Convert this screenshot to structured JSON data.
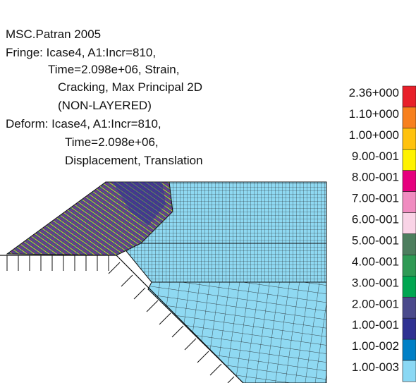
{
  "header": {
    "lines": [
      "MSC.Patran 2005",
      "Fringe: Icase4, A1:Incr=810,",
      "Time=2.098e+06, Strain,",
      "Cracking, Max Principal 2D",
      "(NON-LAYERED)",
      "Deform: Icase4, A1:Incr=810,",
      "Time=2.098e+06,",
      "Displacement, Translation"
    ]
  },
  "legend": {
    "entries": [
      {
        "label": "2.36+000",
        "color": "#e8202a"
      },
      {
        "label": "1.10+000",
        "color": "#f7801e"
      },
      {
        "label": "1.00+000",
        "color": "#ffc20e"
      },
      {
        "label": "9.00-001",
        "color": "#fff200"
      },
      {
        "label": "8.00-001",
        "color": "#e6007e"
      },
      {
        "label": "7.00-001",
        "color": "#f08cc0"
      },
      {
        "label": "6.00-001",
        "color": "#f9d3e6"
      },
      {
        "label": "5.00-001",
        "color": "#4d7e5e"
      },
      {
        "label": "4.00-001",
        "color": "#2f9a55"
      },
      {
        "label": "3.00-001",
        "color": "#00a651"
      },
      {
        "label": "2.00-001",
        "color": "#4a4a8c"
      },
      {
        "label": "1.00-001",
        "color": "#2e3192"
      },
      {
        "label": "1.00-002",
        "color": "#0080c6"
      },
      {
        "label": "1.00-003",
        "color": "#8ad8f4"
      }
    ]
  }
}
